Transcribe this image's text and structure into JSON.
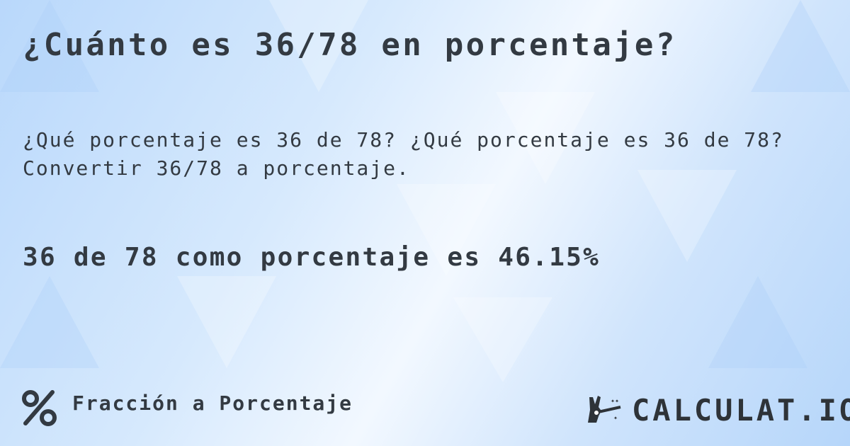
{
  "title": "¿Cuánto es 36/78 en porcentaje?",
  "subtitle_line1": "¿Qué porcentaje es 36 de 78? ¿Qué porcentaje es 36 de 78?",
  "subtitle_line2": "Convertir 36/78 a porcentaje.",
  "result": "36 de 78 como porcentaje es 46.15%",
  "footer": {
    "icon": "percent-icon",
    "label": "Fracción a Porcentaje"
  },
  "logo": {
    "text": "CALCULAT.IO",
    "icon": "magic-hand-icon"
  },
  "colors": {
    "text": "#333a42",
    "background": "#cfe4fc"
  }
}
